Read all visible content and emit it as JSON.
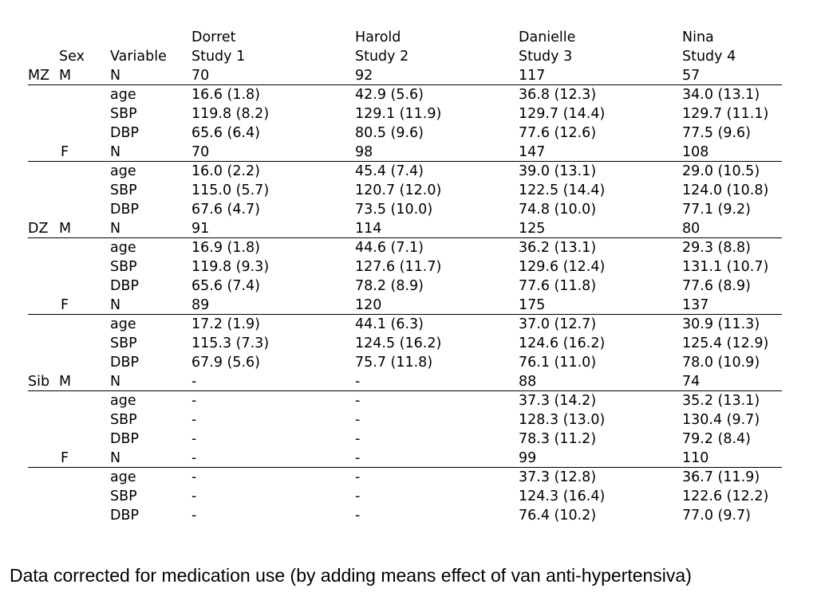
{
  "header": {
    "names": [
      "Dorret",
      "Harold",
      "Danielle",
      "Nina"
    ],
    "sex_label": "Sex",
    "variable_label": "Variable",
    "studies": [
      "Study 1",
      "Study 2",
      "Study 3",
      "Study 4"
    ]
  },
  "rows": [
    {
      "group": "MZ",
      "sex": "M",
      "variable": "N",
      "values": [
        "70",
        "92",
        "117",
        "57"
      ]
    },
    {
      "group": "",
      "sex": "",
      "variable": "age",
      "values": [
        "16.6 (1.8)",
        "42.9 (5.6)",
        "36.8 (12.3)",
        "34.0 (13.1)"
      ]
    },
    {
      "group": "",
      "sex": "",
      "variable": "SBP",
      "values": [
        "119.8 (8.2)",
        "129.1 (11.9)",
        "129.7 (14.4)",
        "129.7 (11.1)"
      ]
    },
    {
      "group": "",
      "sex": "",
      "variable": "DBP",
      "values": [
        "65.6 (6.4)",
        "80.5 (9.6)",
        "77.6 (12.6)",
        "77.5 (9.6)"
      ]
    },
    {
      "group": "",
      "sex": "F",
      "variable": "N",
      "values": [
        "70",
        "98",
        "147",
        "108"
      ]
    },
    {
      "group": "",
      "sex": "",
      "variable": "age",
      "values": [
        "16.0 (2.2)",
        "45.4 (7.4)",
        "39.0 (13.1)",
        "29.0 (10.5)"
      ]
    },
    {
      "group": "",
      "sex": "",
      "variable": "SBP",
      "values": [
        "115.0 (5.7)",
        "120.7 (12.0)",
        "122.5 (14.4)",
        "124.0 (10.8)"
      ]
    },
    {
      "group": "",
      "sex": "",
      "variable": "DBP",
      "values": [
        "67.6 (4.7)",
        "73.5 (10.0)",
        "74.8 (10.0)",
        "77.1 (9.2)"
      ]
    },
    {
      "group": "DZ",
      "sex": "M",
      "variable": "N",
      "values": [
        "91",
        "114",
        "125",
        "80"
      ]
    },
    {
      "group": "",
      "sex": "",
      "variable": "age",
      "values": [
        "16.9 (1.8)",
        "44.6 (7.1)",
        "36.2 (13.1)",
        "29.3 (8.8)"
      ]
    },
    {
      "group": "",
      "sex": "",
      "variable": "SBP",
      "values": [
        "119.8 (9.3)",
        "127.6 (11.7)",
        "129.6 (12.4)",
        "131.1 (10.7)"
      ]
    },
    {
      "group": "",
      "sex": "",
      "variable": "DBP",
      "values": [
        "65.6 (7.4)",
        "78.2 (8.9)",
        "77.6 (11.8)",
        "77.6 (8.9)"
      ]
    },
    {
      "group": "",
      "sex": "F",
      "variable": "N",
      "values": [
        "89",
        "120",
        "175",
        "137"
      ]
    },
    {
      "group": "",
      "sex": "",
      "variable": "age",
      "values": [
        "17.2 (1.9)",
        "44.1 (6.3)",
        "37.0 (12.7)",
        "30.9 (11.3)"
      ]
    },
    {
      "group": "",
      "sex": "",
      "variable": "SBP",
      "values": [
        "115.3 (7.3)",
        "124.5 (16.2)",
        "124.6 (16.2)",
        "125.4 (12.9)"
      ]
    },
    {
      "group": "",
      "sex": "",
      "variable": "DBP",
      "values": [
        "67.9 (5.6)",
        "75.7 (11.8)",
        "76.1 (11.0)",
        "78.0 (10.9)"
      ]
    },
    {
      "group": "Sib",
      "sex": "M",
      "variable": "N",
      "values": [
        "-",
        "-",
        "88",
        "74"
      ]
    },
    {
      "group": "",
      "sex": "",
      "variable": "age",
      "values": [
        "-",
        "-",
        "37.3 (14.2)",
        "35.2 (13.1)"
      ]
    },
    {
      "group": "",
      "sex": "",
      "variable": "SBP",
      "values": [
        "-",
        "-",
        "128.3 (13.0)",
        "130.4 (9.7)"
      ]
    },
    {
      "group": "",
      "sex": "",
      "variable": "DBP",
      "values": [
        "-",
        "-",
        "78.3 (11.2)",
        "79.2 (8.4)"
      ]
    },
    {
      "group": "",
      "sex": "F",
      "variable": "N",
      "values": [
        "-",
        "-",
        "99",
        "110"
      ]
    },
    {
      "group": "",
      "sex": "",
      "variable": "age",
      "values": [
        "-",
        "-",
        "37.3 (12.8)",
        "36.7 (11.9)"
      ]
    },
    {
      "group": "",
      "sex": "",
      "variable": "SBP",
      "values": [
        "-",
        "-",
        "124.3 (16.4)",
        "122.6 (12.2)"
      ]
    },
    {
      "group": "",
      "sex": "",
      "variable": "DBP",
      "values": [
        "-",
        "-",
        "76.4 (10.2)",
        "77.0 (9.7)"
      ]
    }
  ],
  "footnote": "Data corrected for medication use (by adding means effect of van anti-hypertensiva)"
}
